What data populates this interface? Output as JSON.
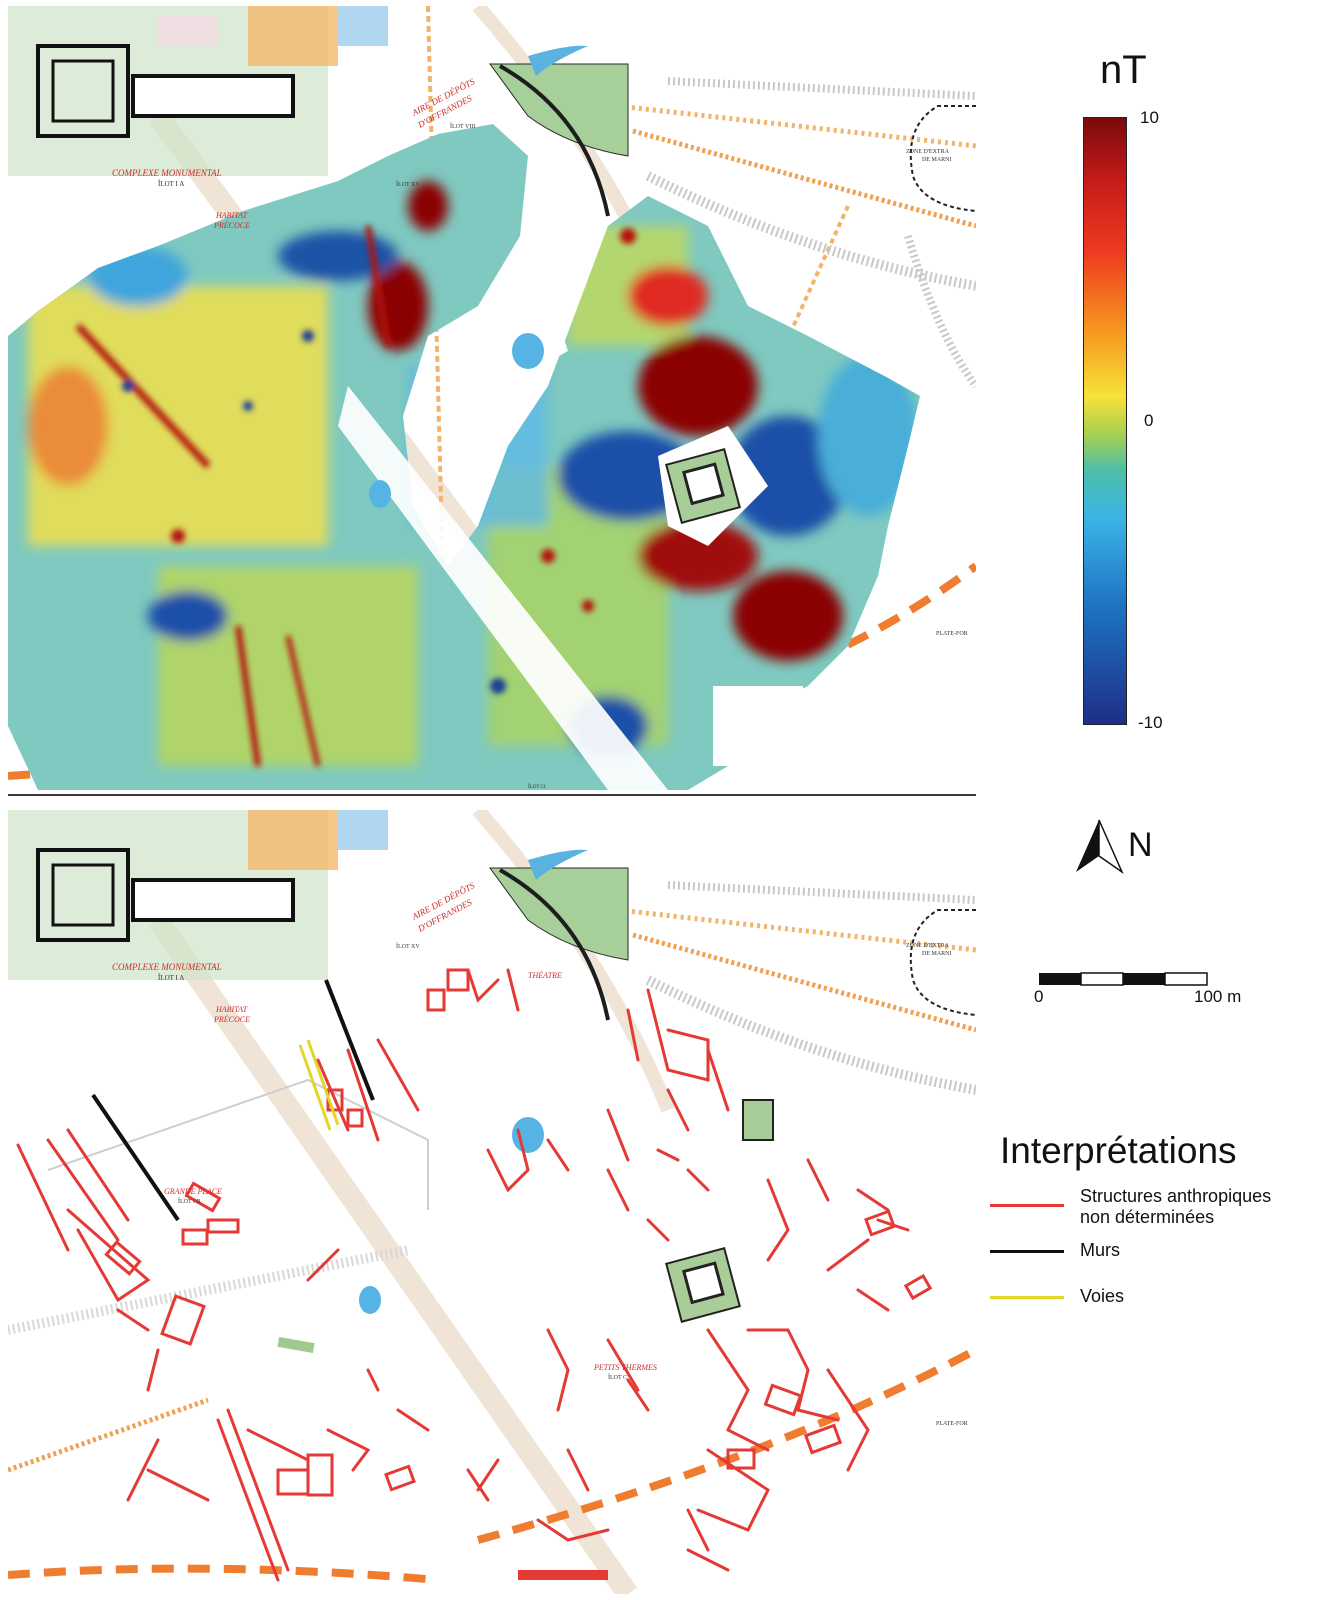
{
  "colorbar": {
    "unit": "nT",
    "max_label": "10",
    "mid_label": "0",
    "min_label": "-10"
  },
  "north_arrow": {
    "label": "N"
  },
  "scale_bar": {
    "start_label": "0",
    "end_label": "100 m"
  },
  "map_labels": {
    "complexe": "COMPLEXE MONUMENTAL",
    "ilot_a": "ÎLOT I A",
    "habitat_1": "HABITAT",
    "habitat_2": "PRÉCOCE",
    "aire_1": "AIRE DE DÉPÔTS",
    "aire_2": "D'OFFRANDES",
    "ilot_viii": "ÎLOT VIII",
    "ilot_xv": "ÎLOT XV",
    "theatre": "THÉATRE",
    "zone_1": "ZONE D'EXTRA",
    "zone_2": "DE MARNI",
    "grande_place": "GRANDE PLACE",
    "ilot_ib": "ÎLOT I B",
    "petits_thermes": "PETITS THERMES",
    "ilot_c": "ÎLOT C",
    "plate_forme": "PLATE-FOR",
    "ilot_ci": "ÎLOT CI"
  },
  "legend": {
    "title": "Interprétations",
    "items": [
      {
        "label_1": "Structures anthropiques",
        "label_2": "non déterminées",
        "color": "#e53935"
      },
      {
        "label_1": "Murs",
        "label_2": "",
        "color": "#111111"
      },
      {
        "label_1": "Voies",
        "label_2": "",
        "color": "#e2d62a"
      }
    ]
  },
  "colors": {
    "hot": "#8b0000",
    "warm": "#e23b23",
    "mid": "#f2d64a",
    "neutral": "#9acd5a",
    "cool": "#3fb8e0",
    "cold": "#1a4fa0",
    "grass": "#9fc98f",
    "road": "#f0e6d8",
    "dashed_orange": "#f0a040"
  }
}
